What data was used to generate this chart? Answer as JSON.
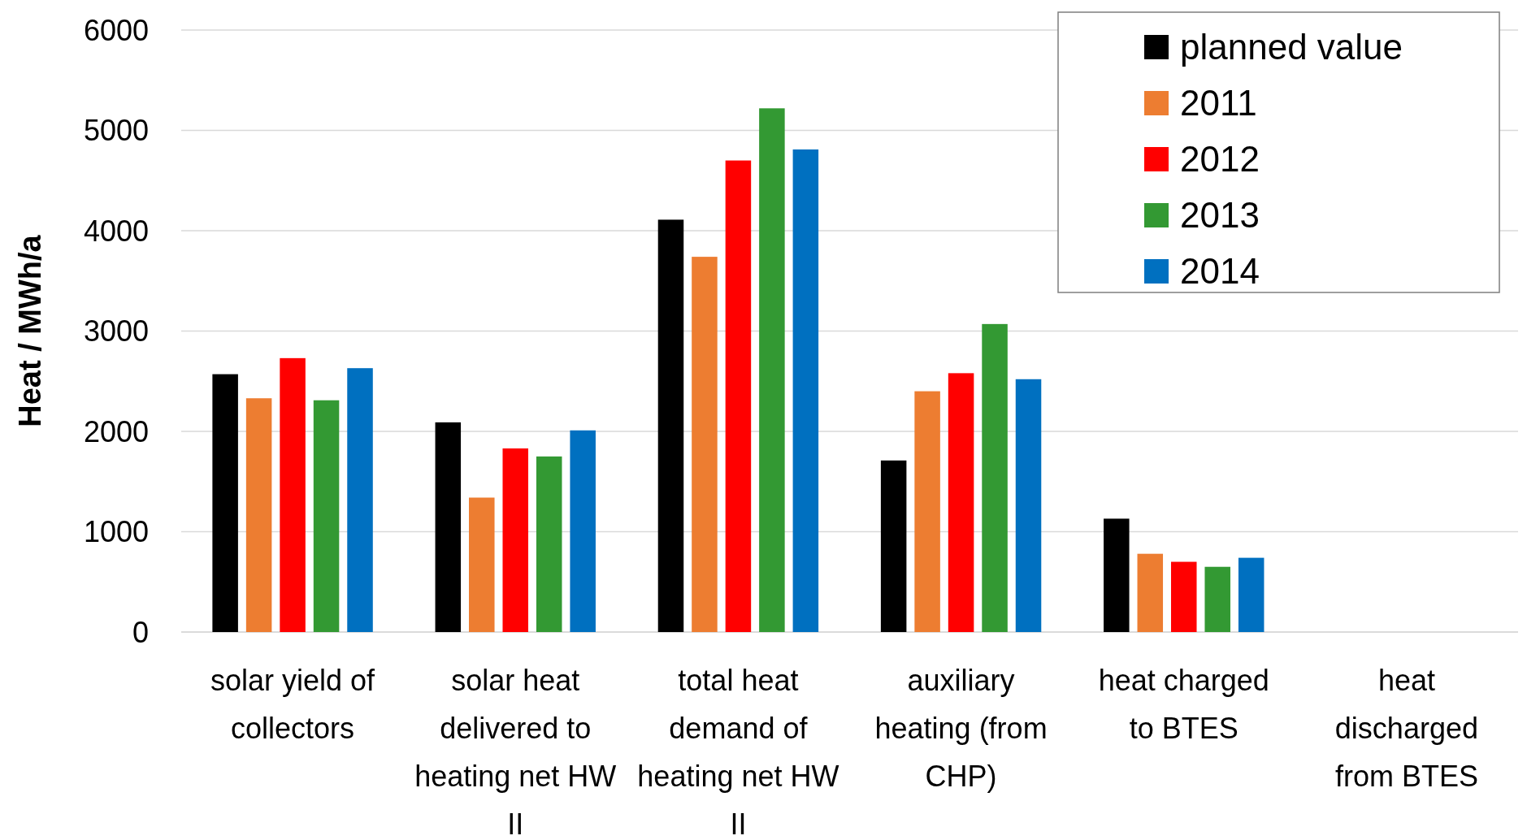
{
  "chart_data": {
    "type": "bar",
    "ylabel": "Heat / MWh/a",
    "categories": [
      "solar yield of collectors",
      "solar heat delivered to heating net HW II",
      "total heat demand of heating net HW II",
      "auxiliary heating (from CHP)",
      "heat charged to BTES",
      "heat discharged from BTES"
    ],
    "series": [
      {
        "name": "planned value",
        "color": "#000000",
        "values": [
          2570,
          2090,
          4110,
          1710,
          1130,
          null
        ]
      },
      {
        "name": "2011",
        "color": "#ed7d31",
        "values": [
          2330,
          1340,
          3740,
          2400,
          780,
          null
        ]
      },
      {
        "name": "2012",
        "color": "#ff0000",
        "values": [
          2730,
          1830,
          4700,
          2580,
          700,
          null
        ]
      },
      {
        "name": "2013",
        "color": "#339933",
        "values": [
          2310,
          1750,
          5220,
          3070,
          650,
          null
        ]
      },
      {
        "name": "2014",
        "color": "#0070c0",
        "values": [
          2630,
          2010,
          4810,
          2520,
          740,
          null
        ]
      }
    ],
    "ylim": [
      0,
      6000
    ],
    "yticks": [
      0,
      1000,
      2000,
      3000,
      4000,
      5000,
      6000
    ],
    "grid": "y",
    "legend": "top right"
  }
}
